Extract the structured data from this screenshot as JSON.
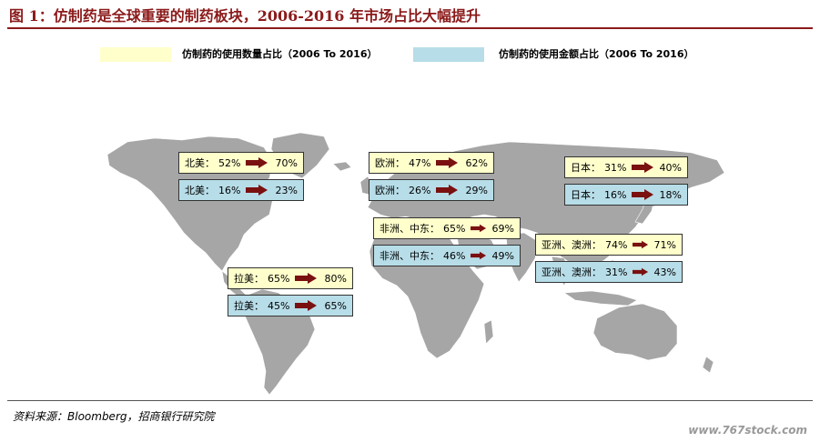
{
  "title": "图 1：仿制药是全球重要的制药板块，2006-2016 年市场占比大幅提升",
  "legend": {
    "volume_label": "仿制药的使用数量占比（2006 To 2016）",
    "value_label": "仿制药的使用金额占比（2006 To 2016）",
    "volume_color": "#FFFFCC",
    "value_color": "#B7DDE8"
  },
  "map_color": "#A6A6A6",
  "arrow_color": "#7A1010",
  "regions": {
    "north_america": {
      "volume": {
        "label": "北美：",
        "from": "52%",
        "to": "70%"
      },
      "value": {
        "label": "北美：",
        "from": "16%",
        "to": "23%"
      }
    },
    "europe": {
      "volume": {
        "label": "欧洲：",
        "from": "47%",
        "to": "62%"
      },
      "value": {
        "label": "欧洲：",
        "from": "26%",
        "to": "29%"
      }
    },
    "japan": {
      "volume": {
        "label": "日本：",
        "from": "31%",
        "to": "40%"
      },
      "value": {
        "label": "日本：",
        "from": "16%",
        "to": "18%"
      }
    },
    "africa_middle_east": {
      "volume": {
        "label": "非洲、中东：",
        "from": "65%",
        "to": "69%"
      },
      "value": {
        "label": "非洲、中东：",
        "from": "46%",
        "to": "49%"
      }
    },
    "asia_australia": {
      "volume": {
        "label": "亚洲、澳洲：",
        "from": "74%",
        "to": "71%"
      },
      "value": {
        "label": "亚洲、澳洲：",
        "from": "31%",
        "to": "43%"
      }
    },
    "latin_america": {
      "volume": {
        "label": "拉美：",
        "from": "65%",
        "to": "80%"
      },
      "value": {
        "label": "拉美：",
        "from": "45%",
        "to": "65%"
      }
    }
  },
  "source": "资料来源：Bloomberg，招商银行研究院",
  "watermark": "www.767stock.com"
}
